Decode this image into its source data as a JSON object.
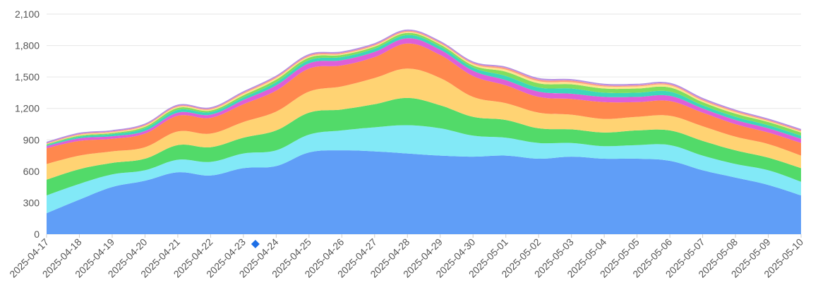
{
  "chart_data": {
    "type": "area",
    "stacked": true,
    "title": "",
    "xlabel": "",
    "ylabel": "",
    "ylim": [
      0,
      2100
    ],
    "yticks": [
      "0",
      "300",
      "600",
      "900",
      "1,200",
      "1,500",
      "1,800",
      "2,100"
    ],
    "grid": true,
    "legend": "none",
    "x": [
      "2025-04-17",
      "2025-04-18",
      "2025-04-19",
      "2025-04-20",
      "2025-04-21",
      "2025-04-22",
      "2025-04-23",
      "2025-04-24",
      "2025-04-25",
      "2025-04-26",
      "2025-04-27",
      "2025-04-28",
      "2025-04-29",
      "2025-04-30",
      "2025-05-01",
      "2025-05-02",
      "2025-05-03",
      "2025-05-04",
      "2025-05-05",
      "2025-05-06",
      "2025-05-07",
      "2025-05-08",
      "2025-05-09",
      "2025-05-10"
    ],
    "marker": {
      "x": "2025-04-23",
      "color": "#1e6fe6",
      "shape": "diamond"
    },
    "series": [
      {
        "color": "#5b9bf7",
        "values": [
          200,
          330,
          450,
          510,
          590,
          560,
          630,
          650,
          780,
          800,
          790,
          770,
          750,
          740,
          750,
          720,
          740,
          720,
          720,
          700,
          610,
          540,
          470,
          370
        ]
      },
      {
        "color": "#7ee8f7",
        "values": [
          170,
          150,
          120,
          100,
          120,
          130,
          140,
          150,
          170,
          190,
          230,
          270,
          260,
          200,
          170,
          150,
          130,
          120,
          130,
          150,
          140,
          130,
          140,
          130
        ]
      },
      {
        "color": "#4cd964",
        "values": [
          150,
          140,
          110,
          110,
          140,
          140,
          150,
          190,
          210,
          200,
          220,
          260,
          220,
          180,
          170,
          140,
          130,
          130,
          140,
          140,
          140,
          130,
          120,
          130
        ]
      },
      {
        "color": "#ffd26e",
        "values": [
          150,
          130,
          110,
          110,
          130,
          130,
          150,
          180,
          200,
          220,
          250,
          280,
          260,
          190,
          160,
          150,
          140,
          130,
          130,
          140,
          140,
          130,
          130,
          120
        ]
      },
      {
        "color": "#ff8448",
        "values": [
          150,
          140,
          120,
          130,
          150,
          150,
          170,
          200,
          220,
          200,
          200,
          240,
          220,
          200,
          170,
          150,
          150,
          160,
          140,
          140,
          130,
          120,
          110,
          120
        ]
      },
      {
        "color": "#dd5ad8",
        "values": [
          20,
          25,
          25,
          25,
          30,
          30,
          40,
          50,
          50,
          50,
          50,
          50,
          50,
          50,
          50,
          50,
          50,
          50,
          50,
          50,
          40,
          40,
          40,
          40
        ]
      },
      {
        "color": "#36d6b8",
        "values": [
          10,
          15,
          20,
          25,
          25,
          25,
          25,
          30,
          30,
          30,
          30,
          30,
          30,
          30,
          40,
          40,
          50,
          40,
          40,
          40,
          30,
          30,
          30,
          30
        ]
      },
      {
        "color": "#7cdd5a",
        "values": [
          8,
          10,
          10,
          15,
          20,
          15,
          20,
          25,
          25,
          20,
          20,
          20,
          20,
          20,
          40,
          40,
          40,
          40,
          40,
          40,
          30,
          30,
          30,
          30
        ]
      },
      {
        "color": "#ffe38a",
        "values": [
          5,
          8,
          8,
          10,
          10,
          10,
          15,
          15,
          10,
          10,
          10,
          10,
          10,
          15,
          20,
          20,
          20,
          20,
          20,
          20,
          15,
          15,
          10,
          10
        ]
      },
      {
        "color": "#ff9a7a",
        "values": [
          5,
          7,
          7,
          8,
          8,
          8,
          10,
          10,
          10,
          10,
          10,
          10,
          10,
          10,
          15,
          15,
          15,
          10,
          10,
          10,
          10,
          10,
          10,
          10
        ]
      },
      {
        "color": "#c87de0",
        "values": [
          5,
          5,
          5,
          5,
          5,
          5,
          5,
          5,
          5,
          5,
          5,
          5,
          5,
          5,
          5,
          5,
          5,
          5,
          5,
          5,
          5,
          5,
          5,
          5
        ]
      },
      {
        "color": "#a8d8ff",
        "values": [
          3,
          3,
          3,
          3,
          3,
          3,
          3,
          3,
          3,
          3,
          3,
          3,
          3,
          3,
          3,
          5,
          5,
          5,
          5,
          5,
          5,
          3,
          3,
          3
        ]
      }
    ]
  }
}
